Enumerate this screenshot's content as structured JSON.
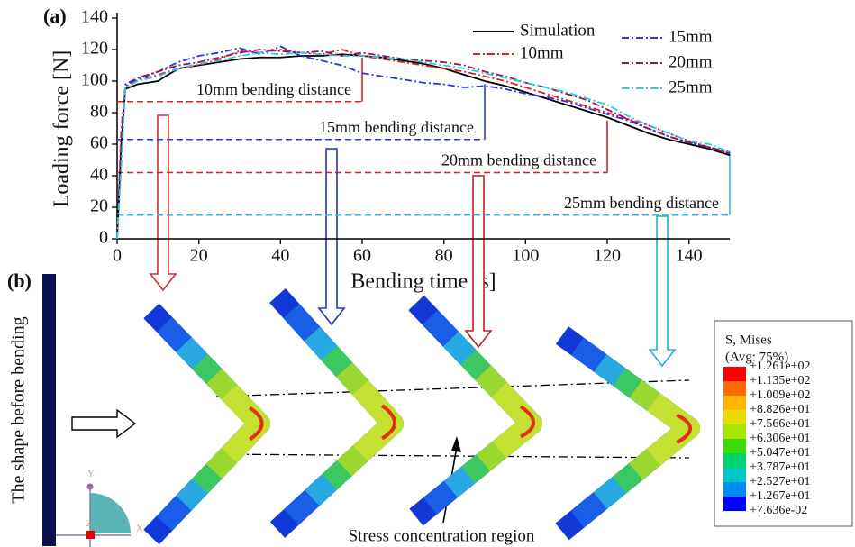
{
  "chart_data": {
    "type": "line",
    "panel_label": "(a)",
    "xlabel": "Bending time [s]",
    "ylabel": "Loading force [N]",
    "x": [
      0,
      1,
      2,
      5,
      10,
      15,
      20,
      25,
      30,
      35,
      40,
      45,
      50,
      55,
      60,
      65,
      70,
      75,
      80,
      85,
      90,
      95,
      100,
      105,
      110,
      115,
      120,
      125,
      130,
      135,
      140,
      145,
      150
    ],
    "series": [
      {
        "name": "Simulation",
        "color": "#000000",
        "linestyle": "solid",
        "values": [
          0,
          60,
          95,
          98,
          100,
          108,
          110,
          112,
          114,
          115,
          115,
          116,
          116,
          117,
          116,
          115,
          113,
          111,
          108,
          104,
          100,
          97,
          93,
          89,
          85,
          81,
          77,
          72,
          67,
          63,
          60,
          57,
          53
        ]
      },
      {
        "name": "10mm",
        "color": "#e02020",
        "linestyle": "dashdot",
        "values": [
          0,
          70,
          96,
          100,
          104,
          108,
          110,
          114,
          119,
          118,
          120,
          118,
          117,
          120,
          116,
          114,
          112,
          110,
          108,
          106,
          103,
          100,
          96,
          92,
          88,
          84,
          80,
          76,
          72,
          67,
          62,
          58,
          54
        ]
      },
      {
        "name": "15mm",
        "color": "#2a3ad8",
        "linestyle": "dashdot",
        "values": [
          0,
          55,
          97,
          101,
          106,
          112,
          116,
          118,
          121,
          117,
          122,
          116,
          113,
          110,
          105,
          103,
          101,
          99,
          98,
          96,
          97,
          95,
          92,
          90,
          87,
          83,
          79,
          75,
          70,
          65,
          61,
          58,
          55
        ]
      },
      {
        "name": "20mm",
        "color": "#a0104a",
        "linestyle": "dashdot",
        "values": [
          0,
          50,
          98,
          102,
          106,
          110,
          112,
          115,
          118,
          120,
          119,
          118,
          119,
          116,
          118,
          116,
          114,
          113,
          112,
          110,
          106,
          103,
          99,
          96,
          92,
          88,
          82,
          76,
          70,
          65,
          61,
          58,
          54
        ]
      },
      {
        "name": "25mm",
        "color": "#22d0e6",
        "linestyle": "dashdot",
        "values": [
          0,
          45,
          96,
          100,
          103,
          108,
          111,
          113,
          116,
          118,
          117,
          118,
          117,
          116,
          116,
          115,
          114,
          112,
          110,
          108,
          105,
          102,
          99,
          96,
          93,
          89,
          85,
          78,
          72,
          67,
          62,
          60,
          55
        ]
      }
    ],
    "reference_lines": [
      {
        "label": "10mm bending distance",
        "y": 87,
        "x_end": 60,
        "y_top": 115,
        "color": "#e02020"
      },
      {
        "label": "15mm bending distance",
        "y": 63,
        "x_end": 90,
        "y_top": 98,
        "color": "#2a3ad8"
      },
      {
        "label": "20mm bending distance",
        "y": 42,
        "x_end": 120,
        "y_top": 75,
        "color": "#d02030"
      },
      {
        "label": "25mm bending distance",
        "y": 15,
        "x_end": 150,
        "y_top": 55,
        "color": "#22c0e6"
      }
    ],
    "xlim": [
      0,
      150
    ],
    "ylim": [
      0,
      140
    ],
    "xticks": [
      0,
      20,
      40,
      60,
      80,
      100,
      120,
      140
    ],
    "yticks": [
      0,
      20,
      40,
      60,
      80,
      100,
      120,
      140
    ],
    "legend_loc": "upper right"
  },
  "panel_b": {
    "panel_label": "(b)",
    "before_label": "The shape before bending",
    "stress_label": "Stress concentration region",
    "triad": {
      "y": "Y",
      "x": "X",
      "z": "Z"
    },
    "colorbar": {
      "title": "S, Mises",
      "subtitle": "(Avg: 75%)",
      "labels": [
        "+1.261e+02",
        "+1.135e+02",
        "+1.009e+02",
        "+8.826e+01",
        "+7.566e+01",
        "+6.306e+01",
        "+5.047e+01",
        "+3.787e+01",
        "+2.527e+01",
        "+1.267e+01",
        "+7.636e-02"
      ],
      "colors": [
        "#ff0000",
        "#ff6a00",
        "#ffb400",
        "#e6dc00",
        "#a8e600",
        "#3cdc00",
        "#00d26e",
        "#00c8c8",
        "#008cf0",
        "#0000ff"
      ]
    }
  }
}
